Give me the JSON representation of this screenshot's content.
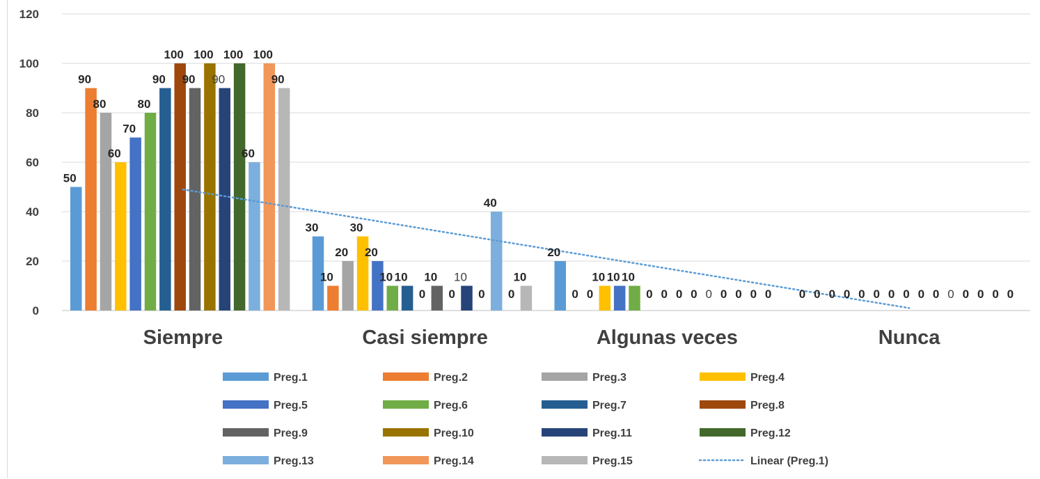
{
  "chart_data": {
    "type": "bar",
    "categories": [
      "Siempre",
      "Casi siempre",
      "Algunas veces",
      "Nunca"
    ],
    "ylim": [
      0,
      120
    ],
    "yticks": [
      0,
      20,
      40,
      60,
      80,
      100,
      120
    ],
    "grid": true,
    "legend_position": "bottom",
    "series": [
      {
        "name": "Preg.1",
        "color": "#5b9bd5",
        "values": [
          50,
          30,
          20,
          0
        ]
      },
      {
        "name": "Preg.2",
        "color": "#ed7d31",
        "values": [
          90,
          10,
          0,
          0
        ]
      },
      {
        "name": "Preg.3",
        "color": "#a5a5a5",
        "values": [
          80,
          20,
          0,
          0
        ]
      },
      {
        "name": "Preg.4",
        "color": "#ffc000",
        "values": [
          60,
          30,
          10,
          0
        ]
      },
      {
        "name": "Preg.5",
        "color": "#4472c4",
        "values": [
          70,
          20,
          10,
          0
        ]
      },
      {
        "name": "Preg.6",
        "color": "#70ad47",
        "values": [
          80,
          10,
          10,
          0
        ]
      },
      {
        "name": "Preg.7",
        "color": "#255e91",
        "values": [
          90,
          10,
          0,
          0
        ]
      },
      {
        "name": "Preg.8",
        "color": "#9e480e",
        "values": [
          100,
          0,
          0,
          0
        ]
      },
      {
        "name": "Preg.9",
        "color": "#636363",
        "values": [
          90,
          10,
          0,
          0
        ]
      },
      {
        "name": "Preg.10",
        "color": "#997300",
        "values": [
          100,
          0,
          0,
          0
        ]
      },
      {
        "name": "Preg.11",
        "color": "#264478",
        "values": [
          90,
          10,
          0,
          0
        ]
      },
      {
        "name": "Preg.12",
        "color": "#43682b",
        "values": [
          100,
          0,
          0,
          0
        ]
      },
      {
        "name": "Preg.13",
        "color": "#7cafdd",
        "values": [
          60,
          40,
          0,
          0
        ]
      },
      {
        "name": "Preg.14",
        "color": "#f1975a",
        "values": [
          100,
          0,
          0,
          0
        ]
      },
      {
        "name": "Preg.15",
        "color": "#b7b7b7",
        "values": [
          90,
          10,
          0,
          0
        ]
      }
    ],
    "trendline": {
      "name": "Linear (Preg.1)",
      "type": "linear",
      "of_series": "Preg.1",
      "color": "#5b9bd5"
    }
  }
}
